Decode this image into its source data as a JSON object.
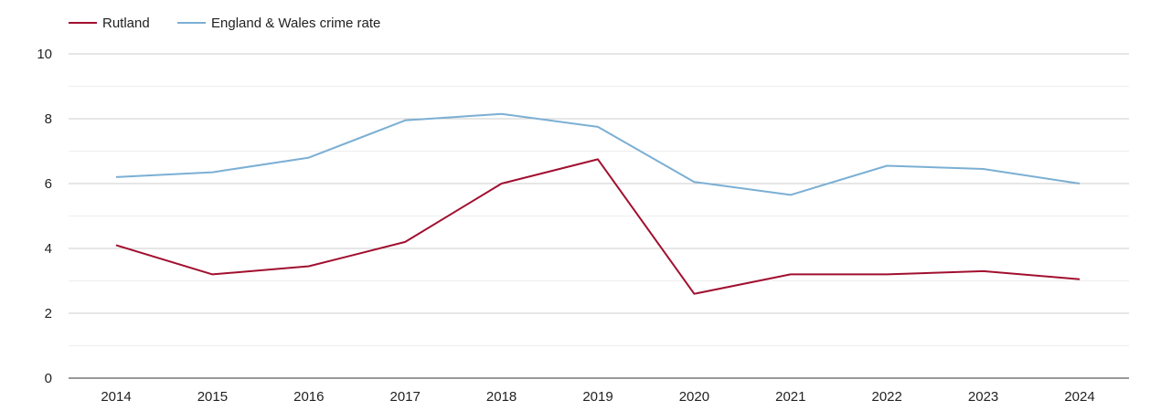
{
  "chart_data": {
    "type": "line",
    "title": "",
    "xlabel": "",
    "ylabel": "",
    "categories": [
      "2014",
      "2015",
      "2016",
      "2017",
      "2018",
      "2019",
      "2020",
      "2021",
      "2022",
      "2023",
      "2024"
    ],
    "ylim": [
      0,
      10
    ],
    "yticks": [
      "0",
      "2",
      "4",
      "6",
      "8",
      "10"
    ],
    "grid": true,
    "legend_position": "top-left",
    "series": [
      {
        "name": "Rutland",
        "color": "#a10f2f",
        "values": [
          4.1,
          3.2,
          3.45,
          4.2,
          6.0,
          6.75,
          2.6,
          3.2,
          3.2,
          3.3,
          3.05
        ]
      },
      {
        "name": "England & Wales crime rate",
        "color": "#7bafd4",
        "values": [
          6.2,
          6.35,
          6.8,
          7.95,
          8.15,
          7.75,
          6.05,
          5.65,
          6.55,
          6.45,
          6.0
        ]
      }
    ]
  }
}
